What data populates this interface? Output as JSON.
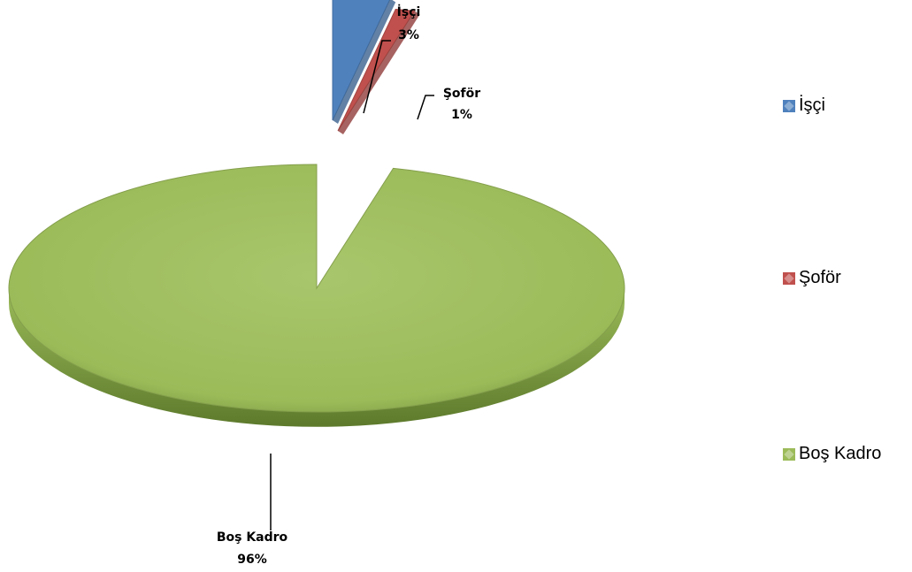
{
  "chart_data": {
    "type": "pie",
    "categories": [
      "İşçi",
      "Şoför",
      "Boş Kadro"
    ],
    "values": [
      3,
      1,
      96
    ],
    "labels": [
      "3%",
      "1%",
      "96%"
    ],
    "colors": [
      "#4f81bd",
      "#c0504d",
      "#9bbb59"
    ],
    "legend": "right"
  },
  "legend": {
    "items": [
      {
        "label": "İşçi",
        "color": "#4f81bd"
      },
      {
        "label": "Şoför",
        "color": "#c0504d"
      },
      {
        "label": "Boş Kadro",
        "color": "#9bbb59"
      }
    ]
  }
}
